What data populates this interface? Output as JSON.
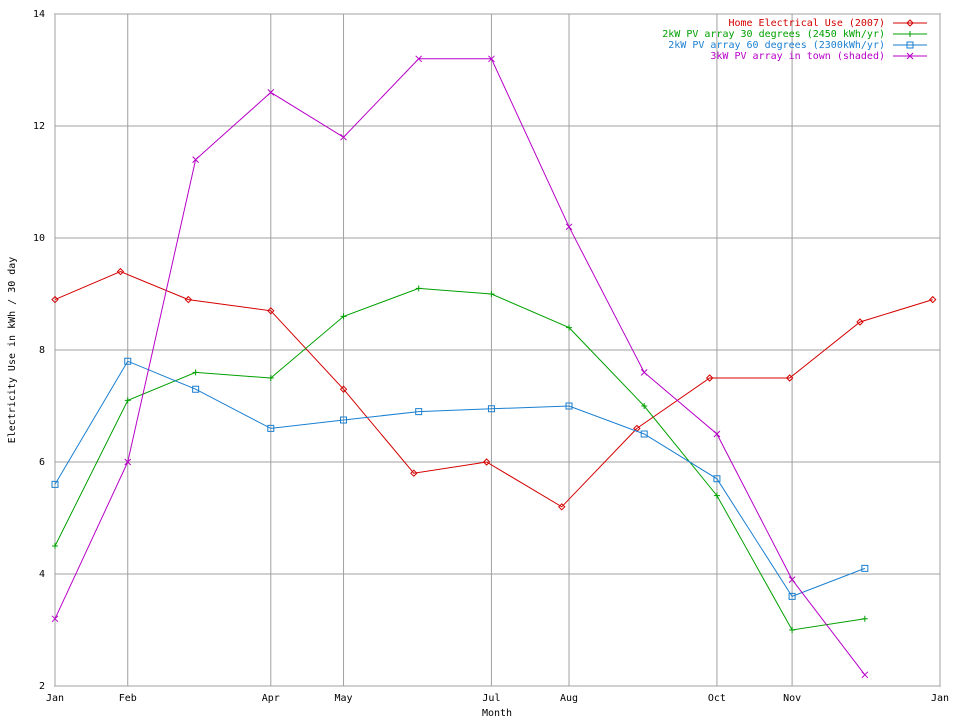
{
  "chart_data": {
    "type": "line",
    "x_label": "Month",
    "y_label": "Electricity Use in kWh / 30 day",
    "xlim": [
      0,
      365
    ],
    "xticks": [
      {
        "value": 0,
        "label": "Jan"
      },
      {
        "value": 30,
        "label": "Feb"
      },
      {
        "value": 89,
        "label": "Apr"
      },
      {
        "value": 119,
        "label": "May"
      },
      {
        "value": 180,
        "label": "Jul"
      },
      {
        "value": 212,
        "label": "Aug"
      },
      {
        "value": 273,
        "label": "Oct"
      },
      {
        "value": 304,
        "label": "Nov"
      },
      {
        "value": 365,
        "label": "Jan"
      }
    ],
    "ylim": [
      2,
      14
    ],
    "yticks": [
      2,
      4,
      6,
      8,
      10,
      12,
      14
    ],
    "grid": true,
    "legend": "top-right",
    "series": [
      {
        "name": "Home Electrical Use (2007)",
        "color": "#d40000",
        "marker": "diamond",
        "x": [
          0,
          27,
          55,
          89,
          119,
          148,
          178,
          209,
          240,
          270,
          303,
          332,
          362
        ],
        "values": [
          8.9,
          9.4,
          8.9,
          8.7,
          7.3,
          5.8,
          6.0,
          5.2,
          6.6,
          7.5,
          7.5,
          8.5,
          8.9
        ]
      },
      {
        "name": "2kW PV array 30 degrees (2450 kWh/yr)",
        "color": "#00a000",
        "marker": "plus",
        "x": [
          0,
          30,
          58,
          89,
          119,
          150,
          180,
          212,
          243,
          273,
          304,
          334
        ],
        "values": [
          4.5,
          7.1,
          7.6,
          7.5,
          8.6,
          9.1,
          9.0,
          8.4,
          7.0,
          5.4,
          3.0,
          3.2
        ]
      },
      {
        "name": "2kW PV array 60 degrees (2300kWh/yr)",
        "color": "#1a7fd0",
        "marker": "square",
        "x": [
          0,
          30,
          58,
          89,
          119,
          150,
          180,
          212,
          243,
          273,
          304,
          334
        ],
        "values": [
          5.6,
          7.8,
          7.3,
          6.6,
          6.75,
          6.9,
          6.95,
          7.0,
          6.5,
          5.7,
          3.6,
          4.1
        ]
      },
      {
        "name": "3kW PV array in town (shaded)",
        "color": "#b800c8",
        "marker": "cross",
        "x": [
          0,
          30,
          58,
          89,
          119,
          150,
          180,
          212,
          243,
          273,
          304,
          334
        ],
        "values": [
          3.2,
          6.0,
          11.4,
          12.6,
          11.8,
          13.2,
          13.2,
          10.2,
          7.6,
          6.5,
          3.9,
          2.2
        ]
      }
    ]
  }
}
